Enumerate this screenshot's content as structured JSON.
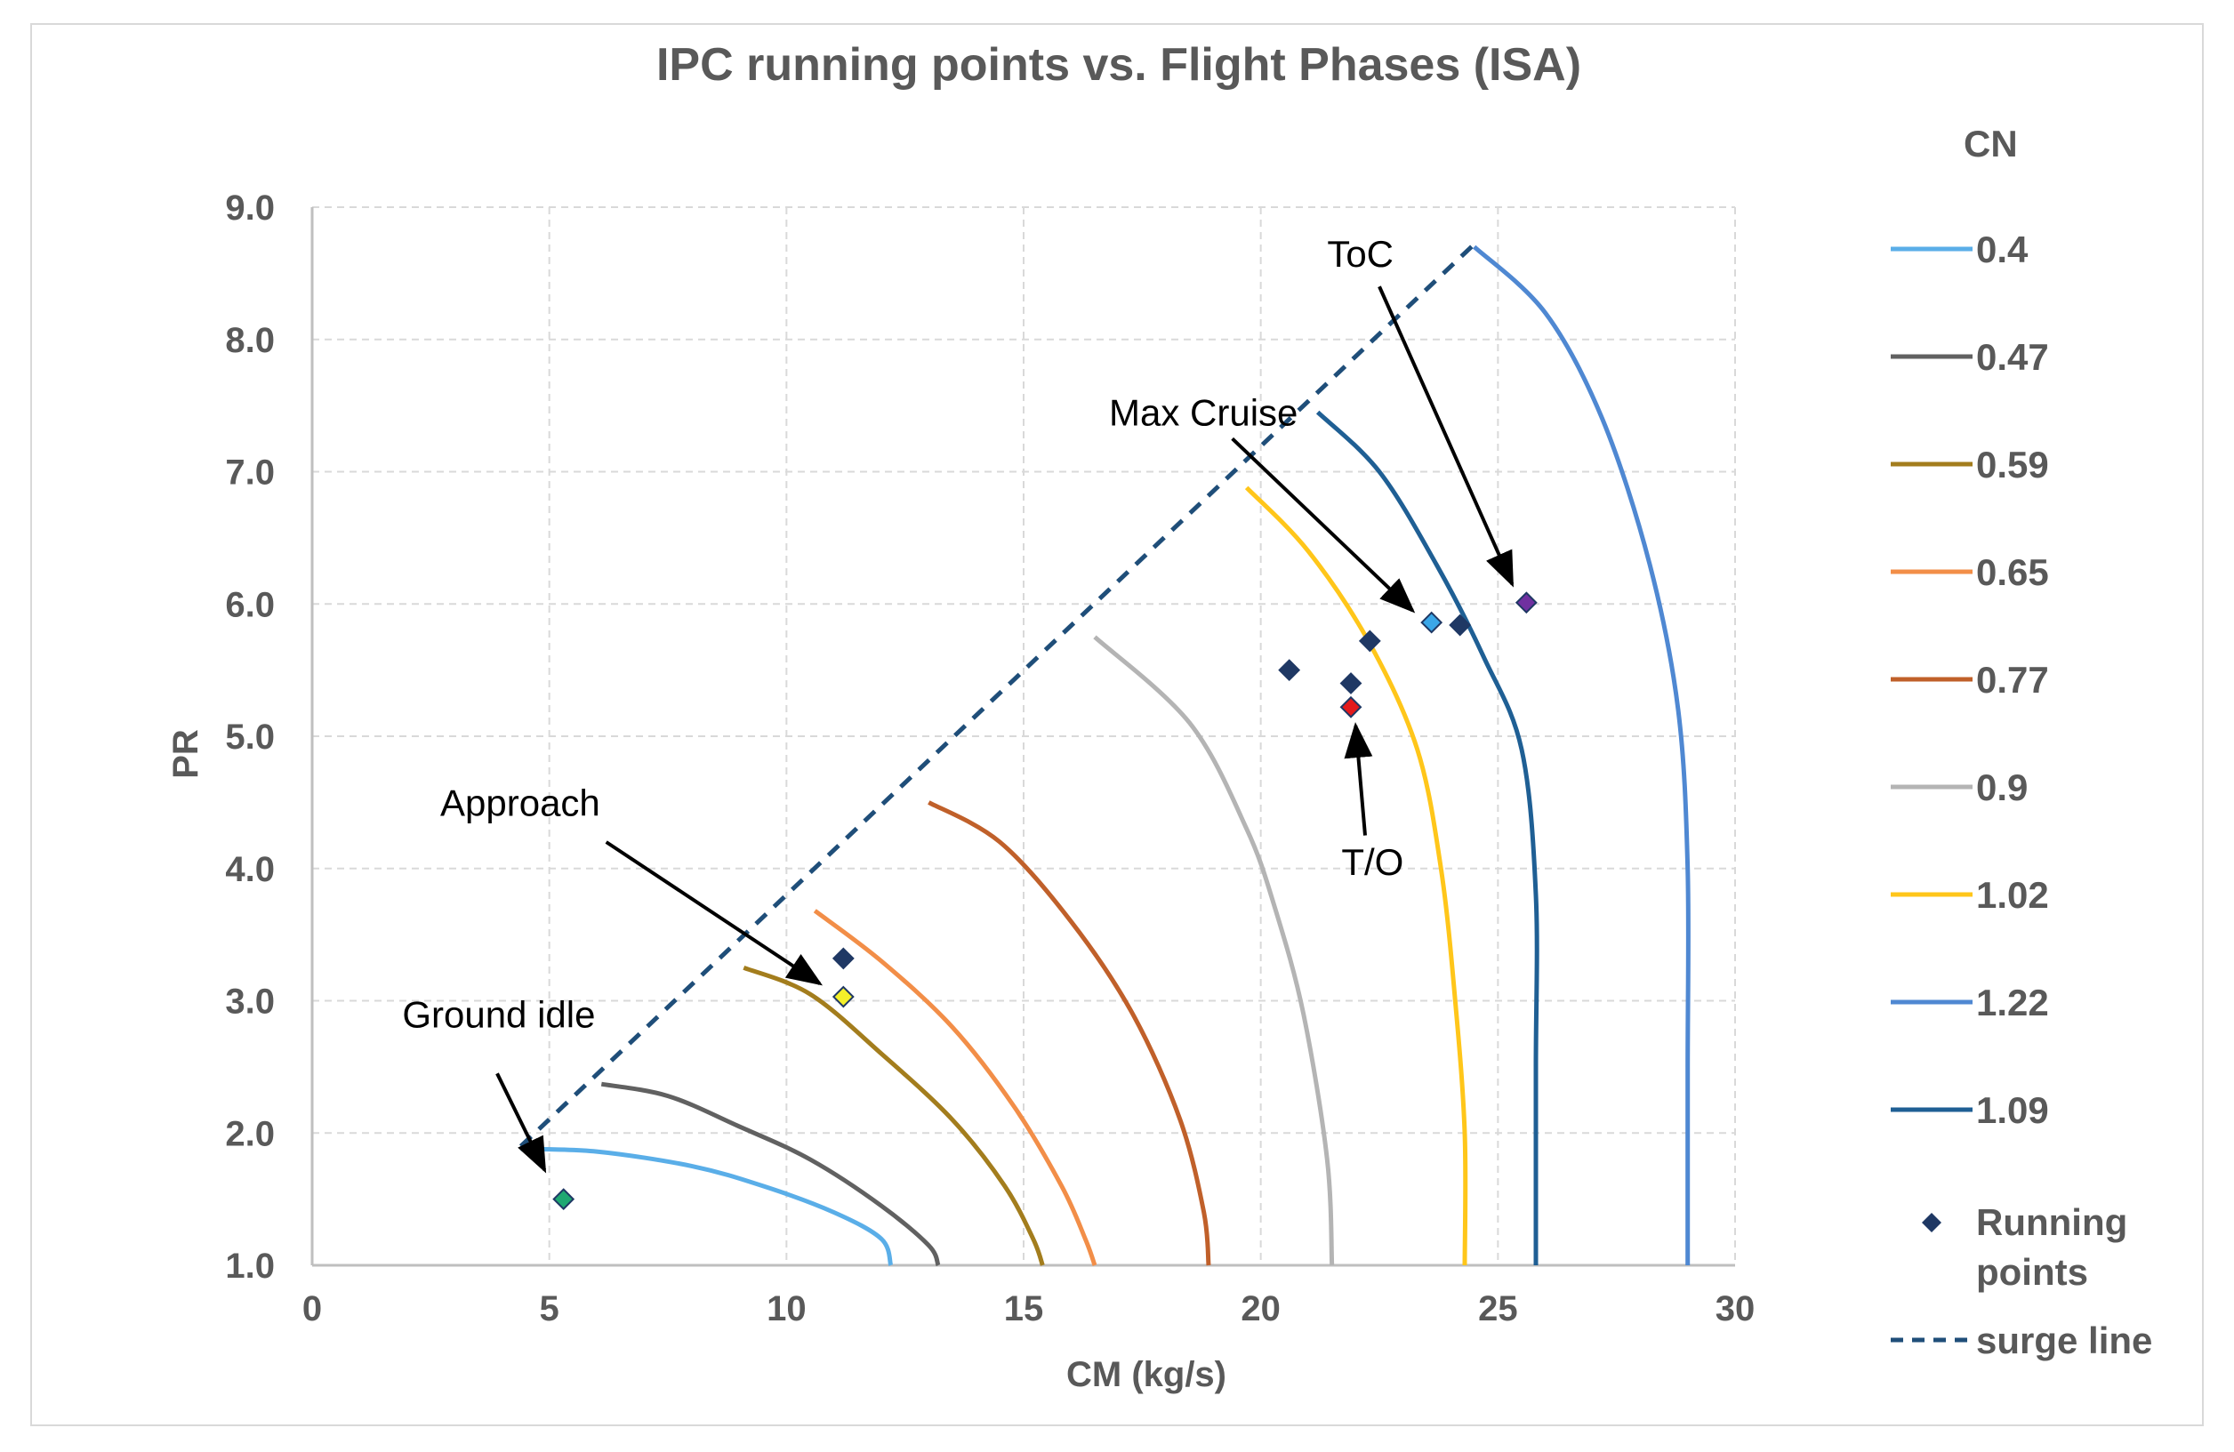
{
  "chart_data": {
    "type": "line",
    "title": "IPC running points vs. Flight Phases (ISA)",
    "xlabel": "CM (kg/s)",
    "ylabel": "PR",
    "xlim": [
      0,
      30
    ],
    "ylim": [
      1.0,
      9.0
    ],
    "x_ticks": [
      "0",
      "5",
      "10",
      "15",
      "20",
      "25",
      "30"
    ],
    "y_ticks": [
      "1.0",
      "2.0",
      "3.0",
      "4.0",
      "5.0",
      "6.0",
      "7.0",
      "8.0",
      "9.0"
    ],
    "grid": true,
    "legend_title": "CN",
    "legend_position": "right",
    "series": [
      {
        "name": "0.4",
        "color": "#5aaee8",
        "points": [
          [
            4.4,
            1.88
          ],
          [
            6,
            1.86
          ],
          [
            8,
            1.75
          ],
          [
            9.5,
            1.6
          ],
          [
            11,
            1.4
          ],
          [
            12,
            1.2
          ],
          [
            12.2,
            1.0
          ]
        ]
      },
      {
        "name": "0.47",
        "color": "#616161",
        "points": [
          [
            6.1,
            2.37
          ],
          [
            7.5,
            2.28
          ],
          [
            9,
            2.05
          ],
          [
            10.5,
            1.8
          ],
          [
            12,
            1.45
          ],
          [
            13,
            1.15
          ],
          [
            13.2,
            1.0
          ]
        ]
      },
      {
        "name": "0.59",
        "color": "#a37d1d",
        "points": [
          [
            9.1,
            3.25
          ],
          [
            10.5,
            3.05
          ],
          [
            12,
            2.6
          ],
          [
            13.5,
            2.1
          ],
          [
            14.6,
            1.6
          ],
          [
            15.2,
            1.2
          ],
          [
            15.4,
            1.0
          ]
        ]
      },
      {
        "name": "0.65",
        "color": "#f28e48",
        "points": [
          [
            10.6,
            3.68
          ],
          [
            12,
            3.3
          ],
          [
            13.5,
            2.8
          ],
          [
            14.8,
            2.2
          ],
          [
            15.8,
            1.6
          ],
          [
            16.3,
            1.2
          ],
          [
            16.5,
            1.0
          ]
        ]
      },
      {
        "name": "0.77",
        "color": "#c0602a",
        "points": [
          [
            13,
            4.5
          ],
          [
            14.5,
            4.2
          ],
          [
            16,
            3.6
          ],
          [
            17.3,
            2.9
          ],
          [
            18.3,
            2.1
          ],
          [
            18.8,
            1.4
          ],
          [
            18.9,
            1.0
          ]
        ]
      },
      {
        "name": "0.9",
        "color": "#b4b4b4",
        "points": [
          [
            16.5,
            5.75
          ],
          [
            18.5,
            5.1
          ],
          [
            19.7,
            4.3
          ],
          [
            20.3,
            3.7
          ],
          [
            20.9,
            2.9
          ],
          [
            21.4,
            1.8
          ],
          [
            21.5,
            1.0
          ]
        ]
      },
      {
        "name": "1.02",
        "color": "#ffc61a",
        "points": [
          [
            19.7,
            6.88
          ],
          [
            21,
            6.4
          ],
          [
            22.3,
            5.7
          ],
          [
            23.3,
            4.9
          ],
          [
            23.8,
            4.0
          ],
          [
            24.1,
            3.0
          ],
          [
            24.3,
            2.0
          ],
          [
            24.3,
            1.0
          ]
        ]
      },
      {
        "name": "1.22",
        "color": "#4f88d2",
        "points": [
          [
            24.5,
            8.7
          ],
          [
            26,
            8.2
          ],
          [
            27.2,
            7.4
          ],
          [
            28.2,
            6.3
          ],
          [
            28.8,
            5.2
          ],
          [
            29,
            4.0
          ],
          [
            29,
            2.5
          ],
          [
            29,
            1.0
          ]
        ]
      },
      {
        "name": "1.09",
        "color": "#1f5f94",
        "points": [
          [
            21.2,
            7.45
          ],
          [
            22.5,
            7.0
          ],
          [
            23.7,
            6.3
          ],
          [
            24.7,
            5.6
          ],
          [
            25.5,
            4.9
          ],
          [
            25.8,
            3.8
          ],
          [
            25.8,
            2.5
          ],
          [
            25.8,
            1.0
          ]
        ]
      }
    ],
    "surge_line": {
      "name": "surge line",
      "color": "#1f4e79",
      "points": [
        [
          4.4,
          1.9
        ],
        [
          24.5,
          8.72
        ]
      ]
    },
    "running_points": {
      "name": "Running points",
      "points": [
        {
          "x": 5.3,
          "y": 1.5,
          "color": "#1fa872"
        },
        {
          "x": 11.2,
          "y": 3.32,
          "color": "#1f3864"
        },
        {
          "x": 11.2,
          "y": 3.03,
          "color": "#f4f02a"
        },
        {
          "x": 20.6,
          "y": 5.5,
          "color": "#1f3864"
        },
        {
          "x": 21.9,
          "y": 5.4,
          "color": "#1f3864"
        },
        {
          "x": 21.9,
          "y": 5.22,
          "color": "#e31a1c"
        },
        {
          "x": 22.3,
          "y": 5.72,
          "color": "#1f3864"
        },
        {
          "x": 23.6,
          "y": 5.86,
          "color": "#3aa7e8"
        },
        {
          "x": 24.2,
          "y": 5.84,
          "color": "#1f3864"
        },
        {
          "x": 25.6,
          "y": 6.01,
          "color": "#7030a0"
        }
      ]
    },
    "annotations": [
      {
        "text": "Ground idle",
        "tx": 1.9,
        "ty": 2.8,
        "ax1": 3.9,
        "ay1": 2.45,
        "ax2": 4.9,
        "ay2": 1.72
      },
      {
        "text": "Approach",
        "tx": 2.7,
        "ty": 4.4,
        "ax1": 6.2,
        "ay1": 4.2,
        "ax2": 10.7,
        "ay2": 3.13
      },
      {
        "text": "Max Cruise",
        "tx": 16.8,
        "ty": 7.35,
        "ax1": 19.4,
        "ay1": 7.25,
        "ax2": 23.2,
        "ay2": 5.95
      },
      {
        "text": "ToC",
        "tx": 21.4,
        "ty": 8.55,
        "ax1": 22.5,
        "ay1": 8.4,
        "ax2": 25.3,
        "ay2": 6.15
      },
      {
        "text": "T/O",
        "tx": 21.7,
        "ty": 3.95,
        "ax1": 22.2,
        "ay1": 4.25,
        "ax2": 22.0,
        "ay2": 5.08
      }
    ],
    "legend_running_lines": [
      "Running",
      "points"
    ]
  }
}
